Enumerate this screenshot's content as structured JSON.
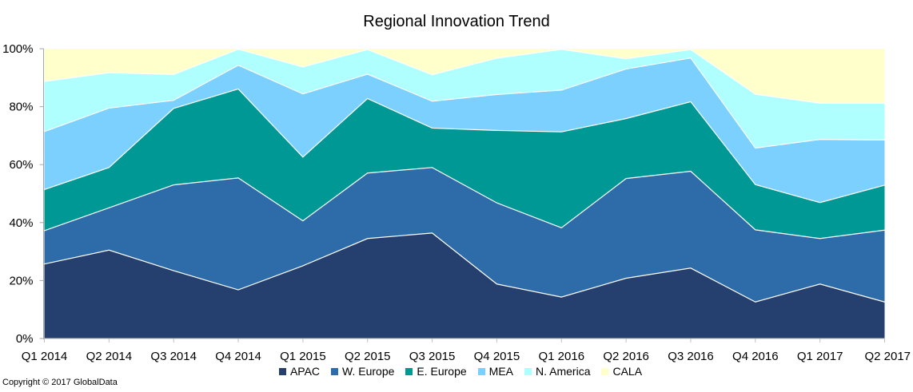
{
  "chart_data": {
    "type": "area",
    "stacking": "percent",
    "title": "Regional Innovation Trend",
    "xlabel": "",
    "ylabel": "",
    "ylim": [
      0,
      100
    ],
    "y_ticks": [
      0,
      20,
      40,
      60,
      80,
      100
    ],
    "y_tick_labels": [
      "0%",
      "20%",
      "40%",
      "60%",
      "80%",
      "100%"
    ],
    "grid": false,
    "legend_position": "bottom",
    "categories": [
      "Q1 2014",
      "Q2 2014",
      "Q3 2014",
      "Q4 2014",
      "Q1 2015",
      "Q2 2015",
      "Q3 2015",
      "Q4 2015",
      "Q1 2016",
      "Q2 2016",
      "Q3 2016",
      "Q4 2016",
      "Q1 2017",
      "Q2 2017"
    ],
    "series": [
      {
        "name": "APAC",
        "color": "#25406f",
        "values": [
          25.7,
          30.5,
          23.4,
          16.8,
          25.1,
          34.5,
          36.4,
          18.8,
          14.3,
          20.8,
          24.3,
          12.6,
          18.8,
          12.6
        ]
      },
      {
        "name": "W. Europe",
        "color": "#2e6ca9",
        "values": [
          11.5,
          14.6,
          29.6,
          38.6,
          15.5,
          22.6,
          22.6,
          28.0,
          23.9,
          34.4,
          33.4,
          24.9,
          15.7,
          24.8
        ]
      },
      {
        "name": "E. Europe",
        "color": "#009894",
        "values": [
          14.2,
          13.9,
          26.4,
          30.7,
          22.0,
          25.7,
          13.6,
          25.0,
          33.1,
          20.7,
          24.0,
          15.6,
          12.4,
          15.5
        ]
      },
      {
        "name": "MEA",
        "color": "#7bd0fd",
        "values": [
          20.0,
          20.5,
          2.8,
          8.2,
          21.8,
          8.4,
          9.3,
          12.4,
          14.4,
          17.1,
          15.1,
          12.6,
          21.8,
          15.6
        ]
      },
      {
        "name": "N. America",
        "color": "#b0ffff",
        "values": [
          17.3,
          12.2,
          8.9,
          5.5,
          9.3,
          8.5,
          9.1,
          12.5,
          14.1,
          3.5,
          2.9,
          18.6,
          12.5,
          12.7
        ]
      },
      {
        "name": "CALA",
        "color": "#ffffcc",
        "values": [
          11.3,
          8.3,
          8.9,
          0.2,
          6.3,
          0.3,
          9.0,
          3.3,
          0.2,
          3.5,
          0.3,
          15.7,
          18.8,
          18.8
        ]
      }
    ]
  },
  "footer": {
    "copyright": "Copyright © 2017 GlobalData"
  }
}
